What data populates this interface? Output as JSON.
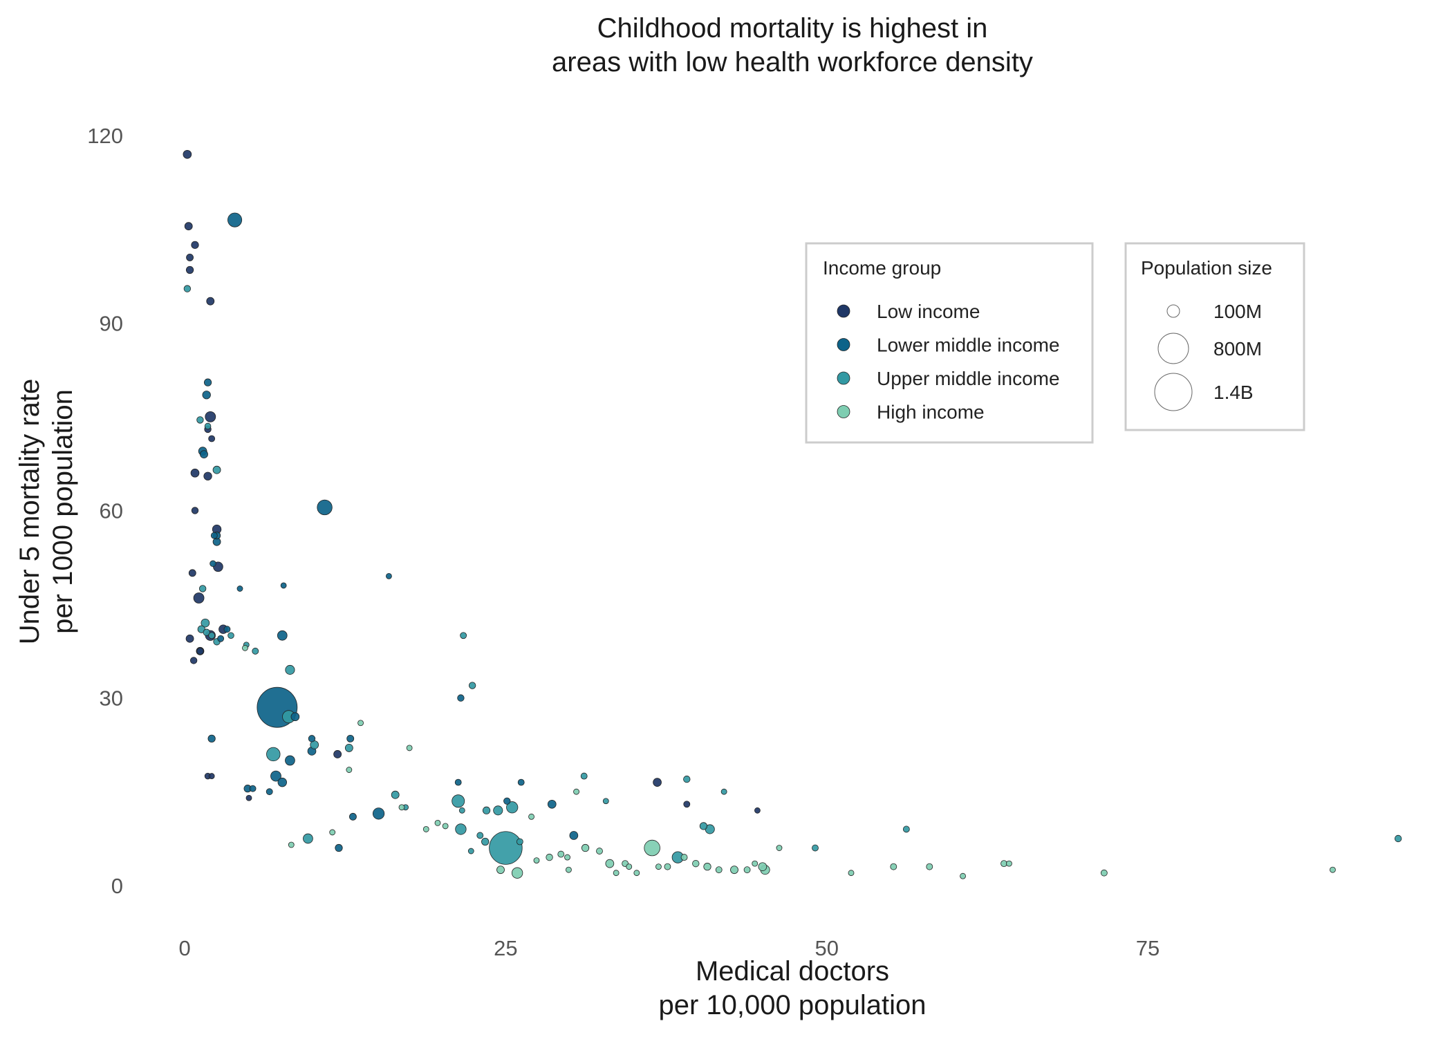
{
  "chart_data": {
    "type": "scatter",
    "title": [
      "Childhood mortality is highest in",
      "areas with low health workforce density"
    ],
    "xlabel": [
      "Medical doctors",
      "per 10,000 population"
    ],
    "ylabel": [
      "Under 5 mortality rate",
      "per 1000 population"
    ],
    "xlim": [
      -2,
      96
    ],
    "ylim": [
      -6,
      124
    ],
    "xticks": [
      0,
      25,
      50,
      75
    ],
    "yticks": [
      0,
      30,
      60,
      90,
      120
    ],
    "grid": false,
    "colors": {
      "Low income": "#1f3766",
      "Lower middle income": "#0d6389",
      "Upper middle income": "#3399a3",
      "High income": "#7ecdb1"
    },
    "legends": {
      "income": {
        "title": "Income group",
        "placement": "top-right",
        "entries": [
          "Low income",
          "Lower middle income",
          "Upper middle income",
          "High income"
        ]
      },
      "size": {
        "title": "Population size",
        "placement": "top-right",
        "entries": [
          {
            "label": "100M",
            "value": 100
          },
          {
            "label": "800M",
            "value": 800
          },
          {
            "label": "1.4B",
            "value": 1400
          }
        ]
      }
    },
    "size_unit": "millions",
    "series": [
      {
        "name": "Low income",
        "points": [
          [
            0.2,
            117,
            20
          ],
          [
            0.3,
            105.5,
            15
          ],
          [
            0.8,
            102.5,
            12
          ],
          [
            0.4,
            100.5,
            10
          ],
          [
            0.4,
            98.5,
            12
          ],
          [
            2,
            93.5,
            15
          ],
          [
            2,
            75,
            45
          ],
          [
            1.8,
            73,
            8
          ],
          [
            2.1,
            71.5,
            6
          ],
          [
            0.8,
            66,
            20
          ],
          [
            1.8,
            65.5,
            18
          ],
          [
            0.8,
            60,
            8
          ],
          [
            2.5,
            57,
            25
          ],
          [
            2.6,
            51,
            35
          ],
          [
            0.6,
            50,
            10
          ],
          [
            1.1,
            46,
            45
          ],
          [
            3,
            41,
            25
          ],
          [
            2,
            40,
            40
          ],
          [
            0.4,
            39.5,
            15
          ],
          [
            1.2,
            37.5,
            8
          ],
          [
            0.7,
            36,
            8
          ],
          [
            11.9,
            21,
            15
          ],
          [
            1.8,
            17.5,
            5
          ],
          [
            36.8,
            16.5,
            20
          ],
          [
            39.1,
            13,
            6
          ],
          [
            44.6,
            12,
            3
          ],
          [
            5,
            14,
            3
          ],
          [
            2.1,
            17.5,
            3
          ]
        ]
      },
      {
        "name": "Lower middle income",
        "points": [
          [
            3.9,
            106.5,
            110
          ],
          [
            1.8,
            80.5,
            12
          ],
          [
            1.7,
            78.5,
            18
          ],
          [
            1.4,
            69.5,
            20
          ],
          [
            1.5,
            69,
            15
          ],
          [
            10.9,
            60.5,
            130
          ],
          [
            2.3,
            56,
            6
          ],
          [
            2.5,
            56,
            12
          ],
          [
            2.5,
            55,
            15
          ],
          [
            2.2,
            51.5,
            5
          ],
          [
            15.9,
            49.5,
            3
          ],
          [
            7.7,
            48,
            3
          ],
          [
            4.3,
            47.5,
            3
          ],
          [
            7.6,
            40,
            35
          ],
          [
            3.3,
            41,
            6
          ],
          [
            2.8,
            39.5,
            6
          ],
          [
            1.2,
            37.5,
            15
          ],
          [
            7.2,
            28.5,
            1400
          ],
          [
            8.6,
            27,
            20
          ],
          [
            2.1,
            23.5,
            12
          ],
          [
            9.9,
            23.5,
            8
          ],
          [
            9.9,
            21.5,
            20
          ],
          [
            8.2,
            20,
            35
          ],
          [
            12.9,
            23.5,
            10
          ],
          [
            7.1,
            17.5,
            45
          ],
          [
            7.6,
            16.5,
            25
          ],
          [
            5.3,
            15.5,
            6
          ],
          [
            6.6,
            15,
            6
          ],
          [
            4.9,
            15.5,
            12
          ],
          [
            21.3,
            16.5,
            6
          ],
          [
            21.5,
            30,
            8
          ],
          [
            26.2,
            16.5,
            6
          ],
          [
            15.1,
            11.5,
            60
          ],
          [
            13.1,
            11,
            10
          ],
          [
            25.1,
            13.5,
            8
          ],
          [
            28.6,
            13,
            20
          ],
          [
            30.3,
            8,
            20
          ],
          [
            12,
            6,
            12
          ]
        ]
      },
      {
        "name": "Upper middle income",
        "points": [
          [
            0.2,
            95.5,
            8
          ],
          [
            1.2,
            74.5,
            8
          ],
          [
            1.8,
            73.5,
            5
          ],
          [
            2.5,
            66.5,
            15
          ],
          [
            1.4,
            47.5,
            8
          ],
          [
            1.6,
            42,
            20
          ],
          [
            1.3,
            41,
            12
          ],
          [
            1.7,
            40.5,
            8
          ],
          [
            2.1,
            40,
            6
          ],
          [
            2.5,
            39,
            8
          ],
          [
            3.6,
            40,
            5
          ],
          [
            4.8,
            38.5,
            3
          ],
          [
            5.5,
            37.5,
            6
          ],
          [
            8.2,
            34.5,
            30
          ],
          [
            21.7,
            40,
            6
          ],
          [
            22.4,
            32,
            8
          ],
          [
            8.1,
            27,
            80
          ],
          [
            10.1,
            22.5,
            20
          ],
          [
            12.8,
            22,
            15
          ],
          [
            6.9,
            21,
            100
          ],
          [
            16.4,
            14.5,
            15
          ],
          [
            17.2,
            12.5,
            3
          ],
          [
            21.3,
            13.5,
            80
          ],
          [
            21.6,
            12,
            3
          ],
          [
            21.5,
            9,
            50
          ],
          [
            23.5,
            12,
            12
          ],
          [
            24.4,
            12,
            30
          ],
          [
            25.5,
            12.5,
            60
          ],
          [
            23,
            8,
            6
          ],
          [
            23.4,
            7,
            12
          ],
          [
            25,
            6,
            900
          ],
          [
            26.1,
            7,
            6
          ],
          [
            31.1,
            17.5,
            6
          ],
          [
            32.8,
            13.5,
            3
          ],
          [
            38.4,
            4.5,
            60
          ],
          [
            40.4,
            9.5,
            12
          ],
          [
            40.9,
            9,
            30
          ],
          [
            39.1,
            17,
            8
          ],
          [
            42,
            15,
            3
          ],
          [
            49.1,
            6,
            6
          ],
          [
            56.2,
            9,
            6
          ],
          [
            94.5,
            7.5,
            8
          ],
          [
            9.6,
            7.5,
            35
          ],
          [
            22.3,
            5.5,
            3
          ]
        ]
      },
      {
        "name": "High income",
        "points": [
          [
            4.7,
            38,
            3
          ],
          [
            8.3,
            6.5,
            3
          ],
          [
            12.8,
            18.5,
            3
          ],
          [
            13.7,
            26,
            3
          ],
          [
            17.5,
            22,
            3
          ],
          [
            18.8,
            9,
            3
          ],
          [
            19.7,
            10,
            3
          ],
          [
            20.3,
            9.5,
            3
          ],
          [
            24.6,
            2.5,
            15
          ],
          [
            25.9,
            2,
            50
          ],
          [
            27.4,
            4,
            3
          ],
          [
            28.4,
            4.5,
            8
          ],
          [
            29.3,
            5,
            6
          ],
          [
            29.8,
            4.5,
            3
          ],
          [
            29.9,
            2.5,
            3
          ],
          [
            31.2,
            6,
            12
          ],
          [
            32.3,
            5.5,
            6
          ],
          [
            33.1,
            3.5,
            20
          ],
          [
            33.6,
            2,
            3
          ],
          [
            34.3,
            3.5,
            6
          ],
          [
            34.6,
            3,
            3
          ],
          [
            35.2,
            2,
            3
          ],
          [
            36.4,
            6,
            150
          ],
          [
            36.9,
            3,
            3
          ],
          [
            37.6,
            3,
            6
          ],
          [
            38.9,
            4.5,
            6
          ],
          [
            39.8,
            3.5,
            8
          ],
          [
            40.7,
            3,
            12
          ],
          [
            41.6,
            2.5,
            6
          ],
          [
            42.8,
            2.5,
            15
          ],
          [
            43.8,
            2.5,
            6
          ],
          [
            44.4,
            3.5,
            3
          ],
          [
            45,
            3,
            20
          ],
          [
            45.2,
            2.5,
            30
          ],
          [
            46.3,
            6,
            3
          ],
          [
            51.9,
            2,
            3
          ],
          [
            55.2,
            3,
            6
          ],
          [
            58,
            3,
            6
          ],
          [
            60.6,
            1.5,
            3
          ],
          [
            63.8,
            3.5,
            6
          ],
          [
            64.2,
            3.5,
            3
          ],
          [
            71.6,
            2,
            6
          ],
          [
            89.4,
            2.5,
            3
          ],
          [
            30.5,
            15,
            3
          ],
          [
            27,
            11,
            3
          ],
          [
            16.9,
            12.5,
            3
          ],
          [
            11.5,
            8.5,
            3
          ]
        ]
      }
    ]
  }
}
